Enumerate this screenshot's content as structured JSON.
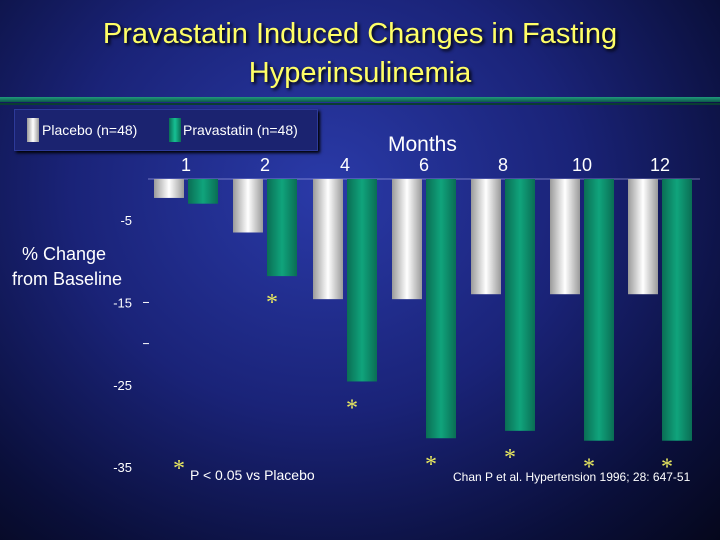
{
  "title": "Pravastatin Induced Changes in Fasting Hyperinsulinemia",
  "title_line1": "Pravastatin Induced Changes in Fasting",
  "title_line2": "Hyperinsulinemia",
  "legend": {
    "placebo": "Placebo (n=48)",
    "pravastatin": "Pravastatin (n=48)"
  },
  "colors": {
    "placebo_light": "#ffffff",
    "placebo_dark": "#9a9a9a",
    "pravastatin": "#10a47c",
    "title": "#ffff66",
    "asterisk": "#e8e860"
  },
  "footnote": {
    "symbol": "*",
    "text": "P < 0.05 vs Placebo"
  },
  "citation": "Chan P et al. Hypertension 1996; 28: 647-51",
  "chart_data": {
    "type": "bar",
    "xlabel": "Months",
    "ylabel_line1": "% Change",
    "ylabel_line2": "from Baseline",
    "categories": [
      "1",
      "2",
      "4",
      "6",
      "8",
      "10",
      "12"
    ],
    "y_ticks": [
      "-5",
      "-15",
      "-25",
      "-35"
    ],
    "ylim": [
      -35,
      0
    ],
    "series": [
      {
        "name": "Placebo (n=48)",
        "values": [
          -2.3,
          -6.5,
          -14.6,
          -14.6,
          -14.0,
          -14.0,
          -14.0
        ]
      },
      {
        "name": "Pravastatin (n=48)",
        "values": [
          -3.0,
          -11.8,
          -24.6,
          -31.5,
          -30.6,
          -31.8,
          -31.8
        ]
      }
    ],
    "significant": [
      false,
      true,
      true,
      true,
      true,
      true,
      true
    ],
    "significance_marker": "*"
  }
}
